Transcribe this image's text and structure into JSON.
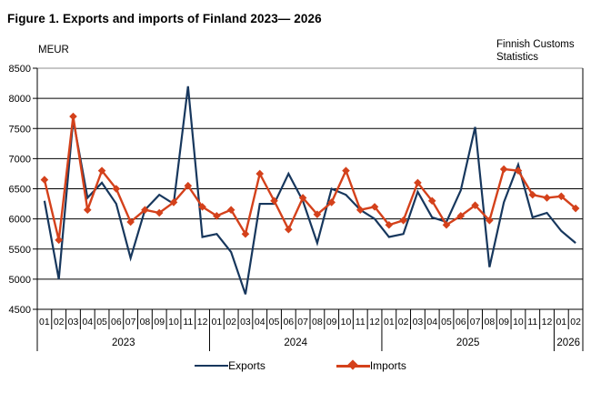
{
  "title": "Figure 1. Exports and imports of Finland 2023— 2026",
  "y_axis_label": "MEUR",
  "source_note": {
    "line1": "Finnish Customs",
    "line2": "Statistics"
  },
  "legend": {
    "exports_label": "Exports",
    "imports_label": "Imports"
  },
  "colors": {
    "exports": "#17375D",
    "imports": "#D4411B",
    "gridline": "#000000",
    "top_border": "#8C8C8C",
    "text": "#000000"
  },
  "chart_data": {
    "type": "line",
    "title": "Figure 1. Exports and imports of Finland 2023— 2026",
    "xlabel": "",
    "ylabel": "MEUR",
    "ylim": [
      4500,
      8500
    ],
    "ytick_step": 500,
    "grid": true,
    "legend_position": "bottom",
    "years": [
      {
        "label": "2023",
        "months": [
          "01",
          "02",
          "03",
          "04",
          "05",
          "06",
          "07",
          "08",
          "09",
          "10",
          "11",
          "12"
        ]
      },
      {
        "label": "2024",
        "months": [
          "01",
          "02",
          "03",
          "04",
          "05",
          "06",
          "07",
          "08",
          "09",
          "10",
          "11",
          "12"
        ]
      },
      {
        "label": "2025",
        "months": [
          "01",
          "02",
          "03",
          "04",
          "05",
          "06",
          "07",
          "08",
          "09",
          "10",
          "11",
          "12"
        ]
      },
      {
        "label": "2026",
        "months": [
          "01",
          "02"
        ]
      }
    ],
    "series": [
      {
        "name": "Exports",
        "marker": "none",
        "values": [
          6300,
          5000,
          7650,
          6350,
          6600,
          6250,
          5350,
          6150,
          6400,
          6250,
          8200,
          5700,
          5750,
          5450,
          4750,
          6250,
          6250,
          6750,
          6300,
          5600,
          6500,
          6400,
          6150,
          6000,
          5700,
          5750,
          6450,
          6025,
          5950,
          6475,
          7525,
          5200,
          6275,
          6900,
          6025,
          6100,
          5800,
          5600
        ]
      },
      {
        "name": "Imports",
        "marker": "diamond",
        "values": [
          6650,
          5650,
          7700,
          6150,
          6800,
          6500,
          5950,
          6150,
          6100,
          6275,
          6550,
          6200,
          6050,
          6150,
          5750,
          6750,
          6300,
          5825,
          6350,
          6075,
          6275,
          6800,
          6150,
          6200,
          5900,
          5975,
          6600,
          6300,
          5900,
          6050,
          6225,
          5975,
          6825,
          6800,
          6400,
          6350,
          6375,
          6175
        ]
      }
    ]
  }
}
